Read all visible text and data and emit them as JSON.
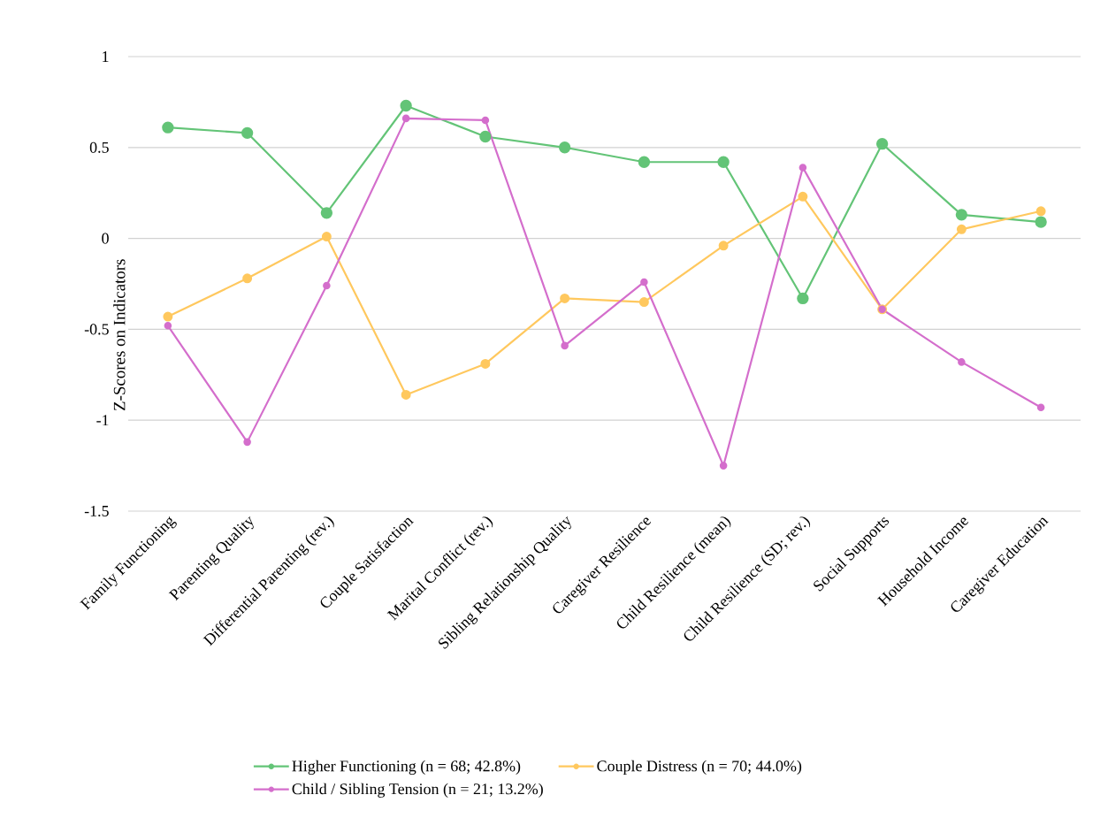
{
  "chart_data": {
    "type": "line",
    "ylabel": "Z-Scores on Indicators",
    "categories": [
      "Family Functioning",
      "Parenting Quality",
      "Differential Parenting (rev.)",
      "Couple Satisfaction",
      "Marital Conflict (rev.)",
      "Sibling Relationship Quality",
      "Caregiver Resilience",
      "Child Resilience (mean)",
      "Child Resilience (SD; rev.)",
      "Social Supports",
      "Household Income",
      "Caregiver Education"
    ],
    "series": [
      {
        "name": "Higher Functioning (n = 68; 42.8%)",
        "color": "#63c477",
        "values": [
          0.61,
          0.58,
          0.14,
          0.73,
          0.56,
          0.5,
          0.42,
          0.42,
          -0.33,
          0.52,
          0.13,
          0.09
        ]
      },
      {
        "name": "Couple Distress (n = 70; 44.0%)",
        "color": "#ffc85e",
        "values": [
          -0.43,
          -0.22,
          0.01,
          -0.86,
          -0.69,
          -0.33,
          -0.35,
          -0.04,
          0.23,
          -0.39,
          0.05,
          0.15
        ]
      },
      {
        "name": "Child / Sibling Tension (n = 21; 13.2%)",
        "color": "#d46ecc",
        "values": [
          -0.48,
          -1.12,
          -0.26,
          0.66,
          0.65,
          -0.59,
          -0.24,
          -1.25,
          0.39,
          -0.39,
          -0.68,
          -0.93
        ]
      }
    ],
    "ylim": [
      -1.5,
      1
    ],
    "yticks": [
      -1.5,
      -1,
      -0.5,
      0,
      0.5,
      1
    ],
    "grid": "y",
    "legend": "bottom",
    "marker": "circle",
    "line_style": "solid"
  }
}
